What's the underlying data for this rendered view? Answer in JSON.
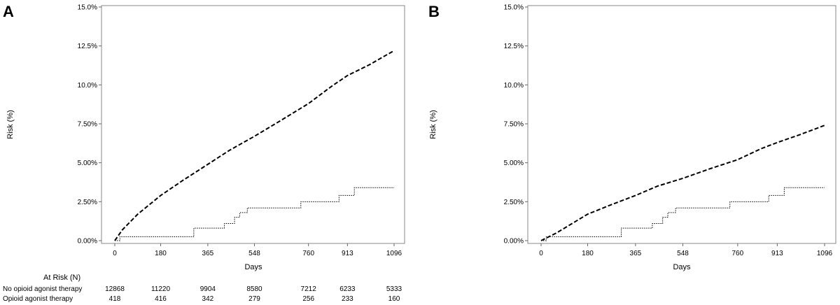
{
  "chart_data": [
    {
      "panel": "A",
      "type": "line",
      "xlabel": "Days",
      "ylabel": "Risk (%)",
      "x_ticks": [
        0,
        180,
        365,
        548,
        760,
        913,
        1096
      ],
      "y_ticks": [
        0,
        2.5,
        5,
        7.5,
        10,
        12.5,
        15
      ],
      "y_tick_labels": [
        "0.00%",
        "2.50%",
        "5.00%",
        "7.50%",
        "10.0%",
        "12.5%",
        "15.0%"
      ],
      "xlim": [
        0,
        1096
      ],
      "ylim": [
        0,
        15
      ],
      "series": [
        {
          "name": "No opioid agonist therapy",
          "style": "dashed",
          "x": [
            0,
            30,
            90,
            180,
            270,
            365,
            450,
            548,
            650,
            760,
            850,
            913,
            1000,
            1096
          ],
          "y": [
            0,
            0.7,
            1.7,
            2.9,
            3.9,
            4.9,
            5.8,
            6.7,
            7.7,
            8.8,
            9.9,
            10.6,
            11.3,
            12.2
          ]
        },
        {
          "name": "Opioid agonist therapy",
          "style": "dotted",
          "x": [
            0,
            20,
            290,
            310,
            430,
            470,
            490,
            520,
            535,
            730,
            880,
            940,
            1096
          ],
          "y": [
            0,
            0.25,
            0.25,
            0.8,
            1.1,
            1.5,
            1.8,
            2.1,
            2.1,
            2.5,
            2.9,
            3.4,
            3.4
          ]
        }
      ],
      "at_risk": {
        "title": "At Risk (N)",
        "days": [
          0,
          180,
          365,
          548,
          760,
          913,
          1096
        ],
        "rows": [
          {
            "label": "No opioid agonist therapy",
            "values": [
              "12868",
              "11220",
              "9904",
              "8580",
              "7212",
              "6233",
              "5333"
            ]
          },
          {
            "label": "Opioid agonist therapy",
            "values": [
              "418",
              "416",
              "342",
              "279",
              "256",
              "233",
              "160"
            ]
          }
        ]
      }
    },
    {
      "panel": "B",
      "type": "line",
      "xlabel": "Days",
      "ylabel": "Risk (%)",
      "x_ticks": [
        0,
        180,
        365,
        548,
        760,
        913,
        1096
      ],
      "y_ticks": [
        0,
        2.5,
        5,
        7.5,
        10,
        12.5,
        15
      ],
      "y_tick_labels": [
        "0.00%",
        "2.50%",
        "5.00%",
        "7.50%",
        "10.0%",
        "12.5%",
        "15.0%"
      ],
      "xlim": [
        0,
        1096
      ],
      "ylim": [
        0,
        15
      ],
      "series": [
        {
          "name": "No opioid agonist therapy",
          "style": "dashed",
          "x": [
            0,
            60,
            180,
            270,
            365,
            450,
            548,
            650,
            760,
            850,
            913,
            1000,
            1096
          ],
          "y": [
            0,
            0.5,
            1.7,
            2.3,
            2.9,
            3.5,
            4.0,
            4.6,
            5.2,
            5.9,
            6.3,
            6.8,
            7.4
          ]
        },
        {
          "name": "Opioid agonist therapy",
          "style": "dotted",
          "x": [
            0,
            20,
            290,
            310,
            430,
            470,
            490,
            520,
            535,
            730,
            880,
            940,
            1096
          ],
          "y": [
            0,
            0.25,
            0.25,
            0.8,
            1.1,
            1.5,
            1.8,
            2.1,
            2.1,
            2.5,
            2.9,
            3.4,
            3.4
          ]
        }
      ]
    }
  ]
}
